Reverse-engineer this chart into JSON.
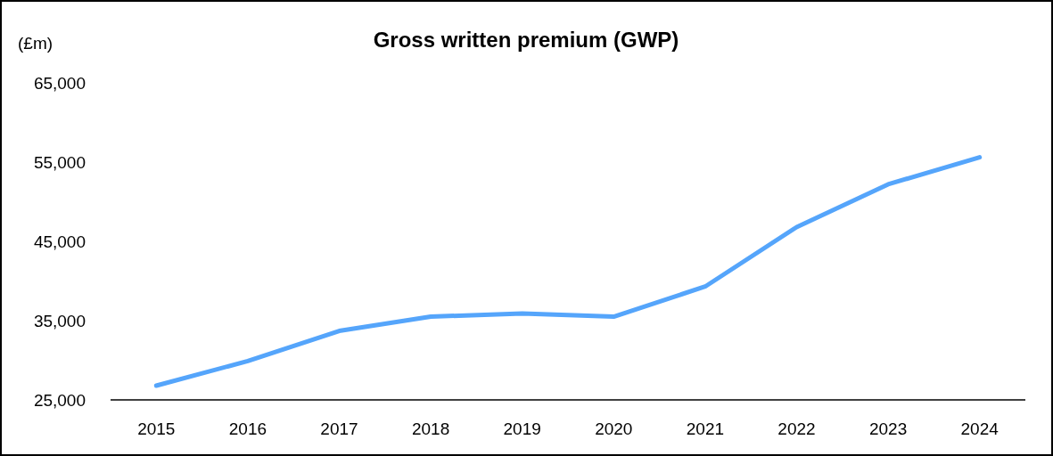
{
  "chart_data": {
    "type": "line",
    "title": "Gross written premium (GWP)",
    "ylabel": "(£m)",
    "categories": [
      "2015",
      "2016",
      "2017",
      "2018",
      "2019",
      "2020",
      "2021",
      "2022",
      "2023",
      "2024"
    ],
    "series": [
      {
        "color": "#55a5fb",
        "values": [
          26800,
          29900,
          33700,
          35500,
          35900,
          35500,
          39300,
          46800,
          52200,
          55600
        ]
      }
    ],
    "ylim": [
      25000,
      65000
    ],
    "yticks": [
      {
        "value": 25000,
        "label": "25,000"
      },
      {
        "value": 35000,
        "label": "35,000"
      },
      {
        "value": 45000,
        "label": "45,000"
      },
      {
        "value": 55000,
        "label": "55,000"
      },
      {
        "value": 65000,
        "label": "65,000"
      }
    ],
    "grid": false,
    "marker": "none",
    "line_style": "solid"
  }
}
